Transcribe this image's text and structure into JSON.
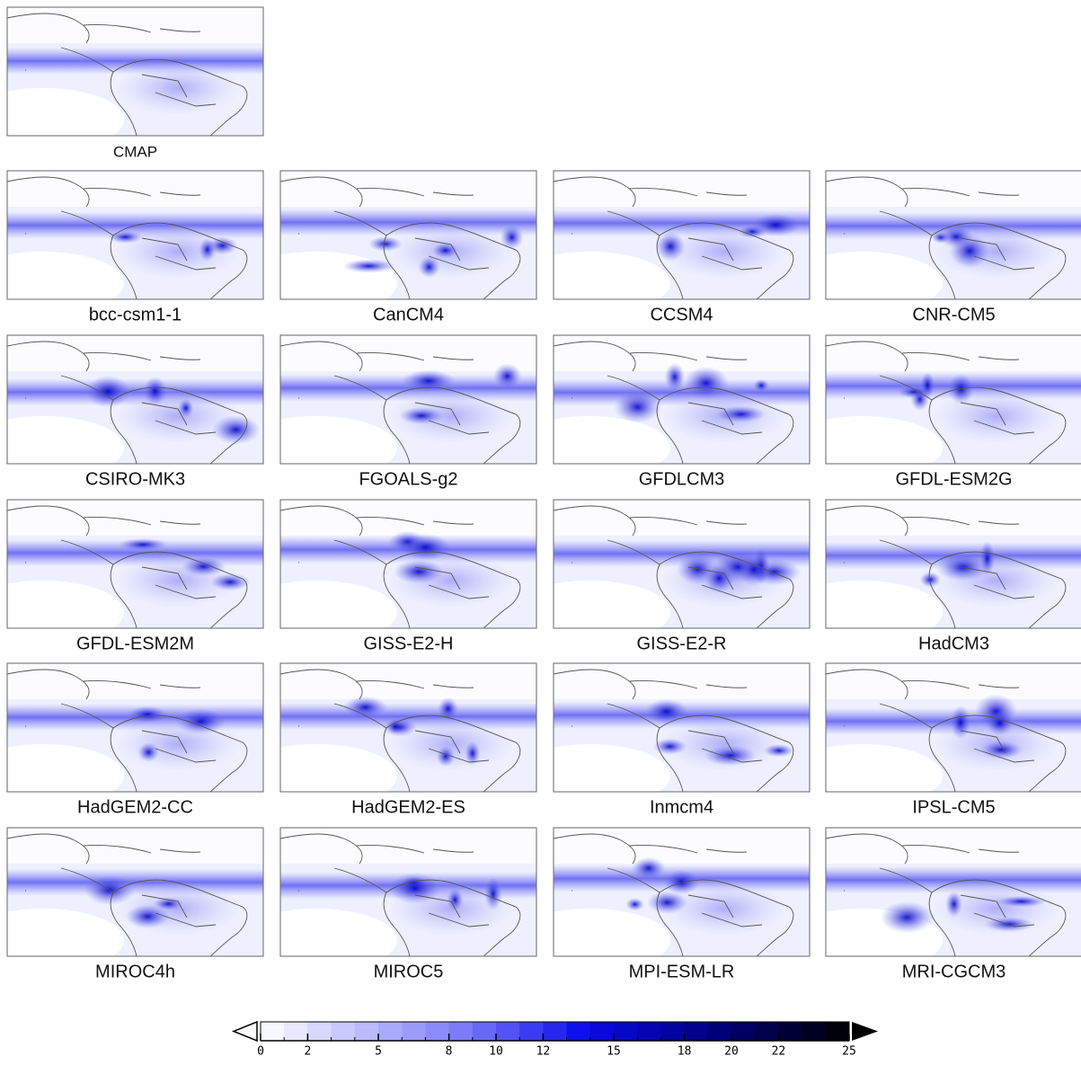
{
  "panels": [
    {
      "label": "CMAP"
    },
    {
      "label": "bcc-csm1-1"
    },
    {
      "label": "CanCM4"
    },
    {
      "label": "CCSM4"
    },
    {
      "label": "CNR-CM5"
    },
    {
      "label": "CSIRO-MK3"
    },
    {
      "label": "FGOALS-g2"
    },
    {
      "label": "GFDLCM3"
    },
    {
      "label": "GFDL-ESM2G"
    },
    {
      "label": "GFDL-ESM2M"
    },
    {
      "label": "GISS-E2-H"
    },
    {
      "label": "GISS-E2-R"
    },
    {
      "label": "HadCM3"
    },
    {
      "label": "HadGEM2-CC"
    },
    {
      "label": "HadGEM2-ES"
    },
    {
      "label": "Inmcm4"
    },
    {
      "label": "IPSL-CM5"
    },
    {
      "label": "MIROC4h"
    },
    {
      "label": "MIROC5"
    },
    {
      "label": "MPI-ESM-LR"
    },
    {
      "label": "MRI-CGCM3"
    }
  ],
  "colorbar": {
    "lim": [
      0,
      25
    ],
    "ticks": [
      0,
      2,
      5,
      8,
      10,
      12,
      15,
      18,
      20,
      22,
      25
    ]
  }
}
